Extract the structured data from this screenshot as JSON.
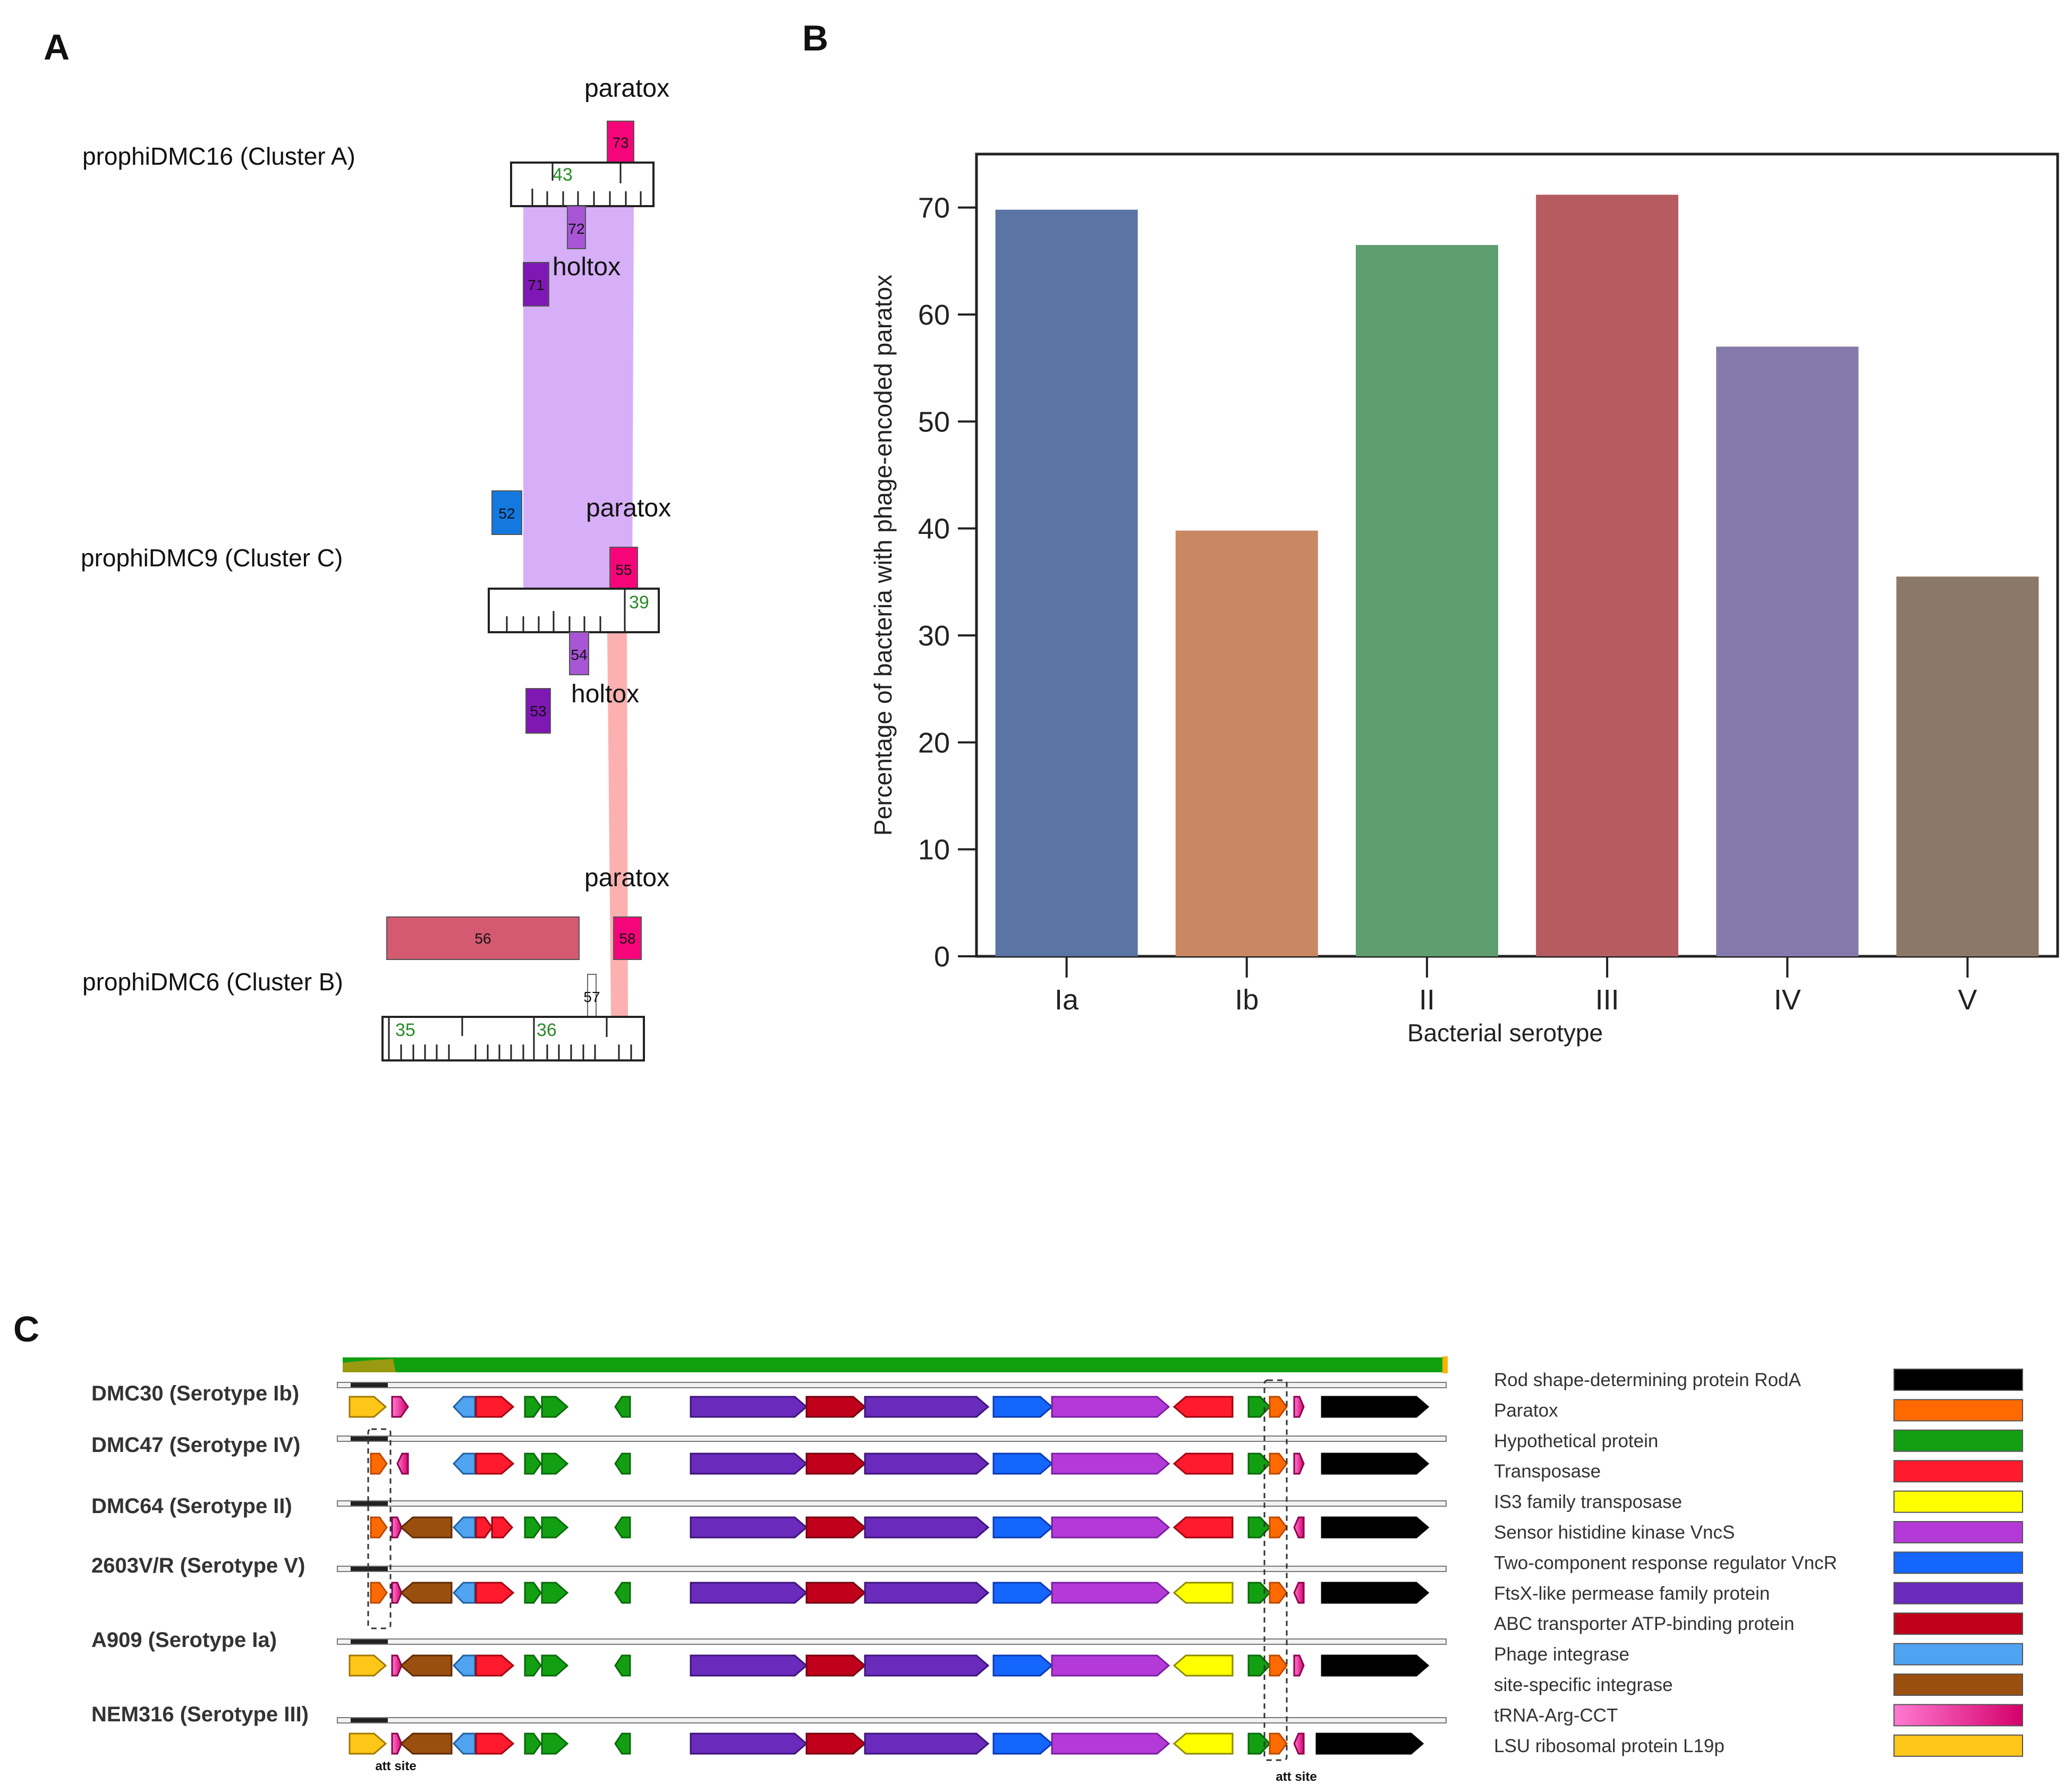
{
  "colors": {
    "bar_Ia": "#5a74a3",
    "bar_Ib": "#c98762",
    "bar_II": "#5f9e6e",
    "bar_III": "#b65c61",
    "bar_IV": "#857aab",
    "bar_V": "#8c7866",
    "paratox": "#f6057a",
    "holtox_light": "#a855d6",
    "holtox_dark": "#7f17b5",
    "gene52": "#1378e0",
    "gene56": "#d45a72",
    "purple_band": "#d7aef8",
    "pink_band": "#fdb0b0",
    "tick_green": "#2a8a2a"
  },
  "panel_a": {
    "letter": "A",
    "prophages": [
      {
        "title": "prophiDMC16 (Cluster A)",
        "paratox": "paratox",
        "holtox": "holtox",
        "genes": [
          "73",
          "72",
          "71"
        ],
        "tick_label": "43"
      },
      {
        "title": "prophiDMC9 (Cluster C)",
        "paratox": "paratox",
        "holtox": "holtox",
        "genes": [
          "52",
          "55",
          "54",
          "53"
        ],
        "tick_label": "39"
      },
      {
        "title": "prophiDMC6 (Cluster B)",
        "paratox": "paratox",
        "genes": [
          "56",
          "58",
          "57"
        ],
        "tick_labels": [
          "35",
          "36"
        ]
      }
    ]
  },
  "chart_data": {
    "type": "bar",
    "panel_letter": "B",
    "title": "",
    "categories": [
      "Ia",
      "Ib",
      "II",
      "III",
      "IV",
      "V"
    ],
    "values": [
      69.8,
      39.8,
      66.5,
      71.2,
      57.0,
      35.5
    ],
    "xlabel": "Bacterial serotype",
    "ylabel": "Percentage of bacteria with phage-encoded paratox",
    "ylim": [
      0,
      75
    ],
    "yticks": [
      0,
      10,
      20,
      30,
      40,
      50,
      60,
      70
    ],
    "grid": false,
    "legend": "none"
  },
  "panel_c": {
    "letter": "C",
    "strains": [
      "DMC30 (Serotype Ib)",
      "DMC47 (Serotype IV)",
      "DMC64 (Serotype II)",
      "2603V/R (Serotype V)",
      "A909 (Serotype Ia)",
      "NEM316 (Serotype III)"
    ],
    "att_site_labels": [
      "att site",
      "att site"
    ],
    "legend": [
      {
        "label": "Rod shape-determining protein RodA",
        "color": "#000000"
      },
      {
        "label": "Paratox",
        "color": "#ff6a00"
      },
      {
        "label": "Hypothetical protein",
        "color": "#12a012"
      },
      {
        "label": "Transposase",
        "color": "#ff1a2e"
      },
      {
        "label": "IS3 family transposase",
        "color": "#ffff00"
      },
      {
        "label": "Sensor histidine kinase VncS",
        "color": "#b43ad8"
      },
      {
        "label": "Two-component response regulator VncR",
        "color": "#1466ff"
      },
      {
        "label": "FtsX-like permease family protein",
        "color": "#6a2abc"
      },
      {
        "label": "ABC transporter ATP-binding protein",
        "color": "#c0001a"
      },
      {
        "label": "Phage integrase",
        "color": "#4fa3f0"
      },
      {
        "label": "site-specific integrase",
        "color": "#9b4f0f"
      },
      {
        "label": "tRNA-Arg-CCT",
        "color": "#ff1aa0"
      },
      {
        "label": "LSU ribosomal protein L19p",
        "color": "#ffc61a"
      }
    ]
  }
}
